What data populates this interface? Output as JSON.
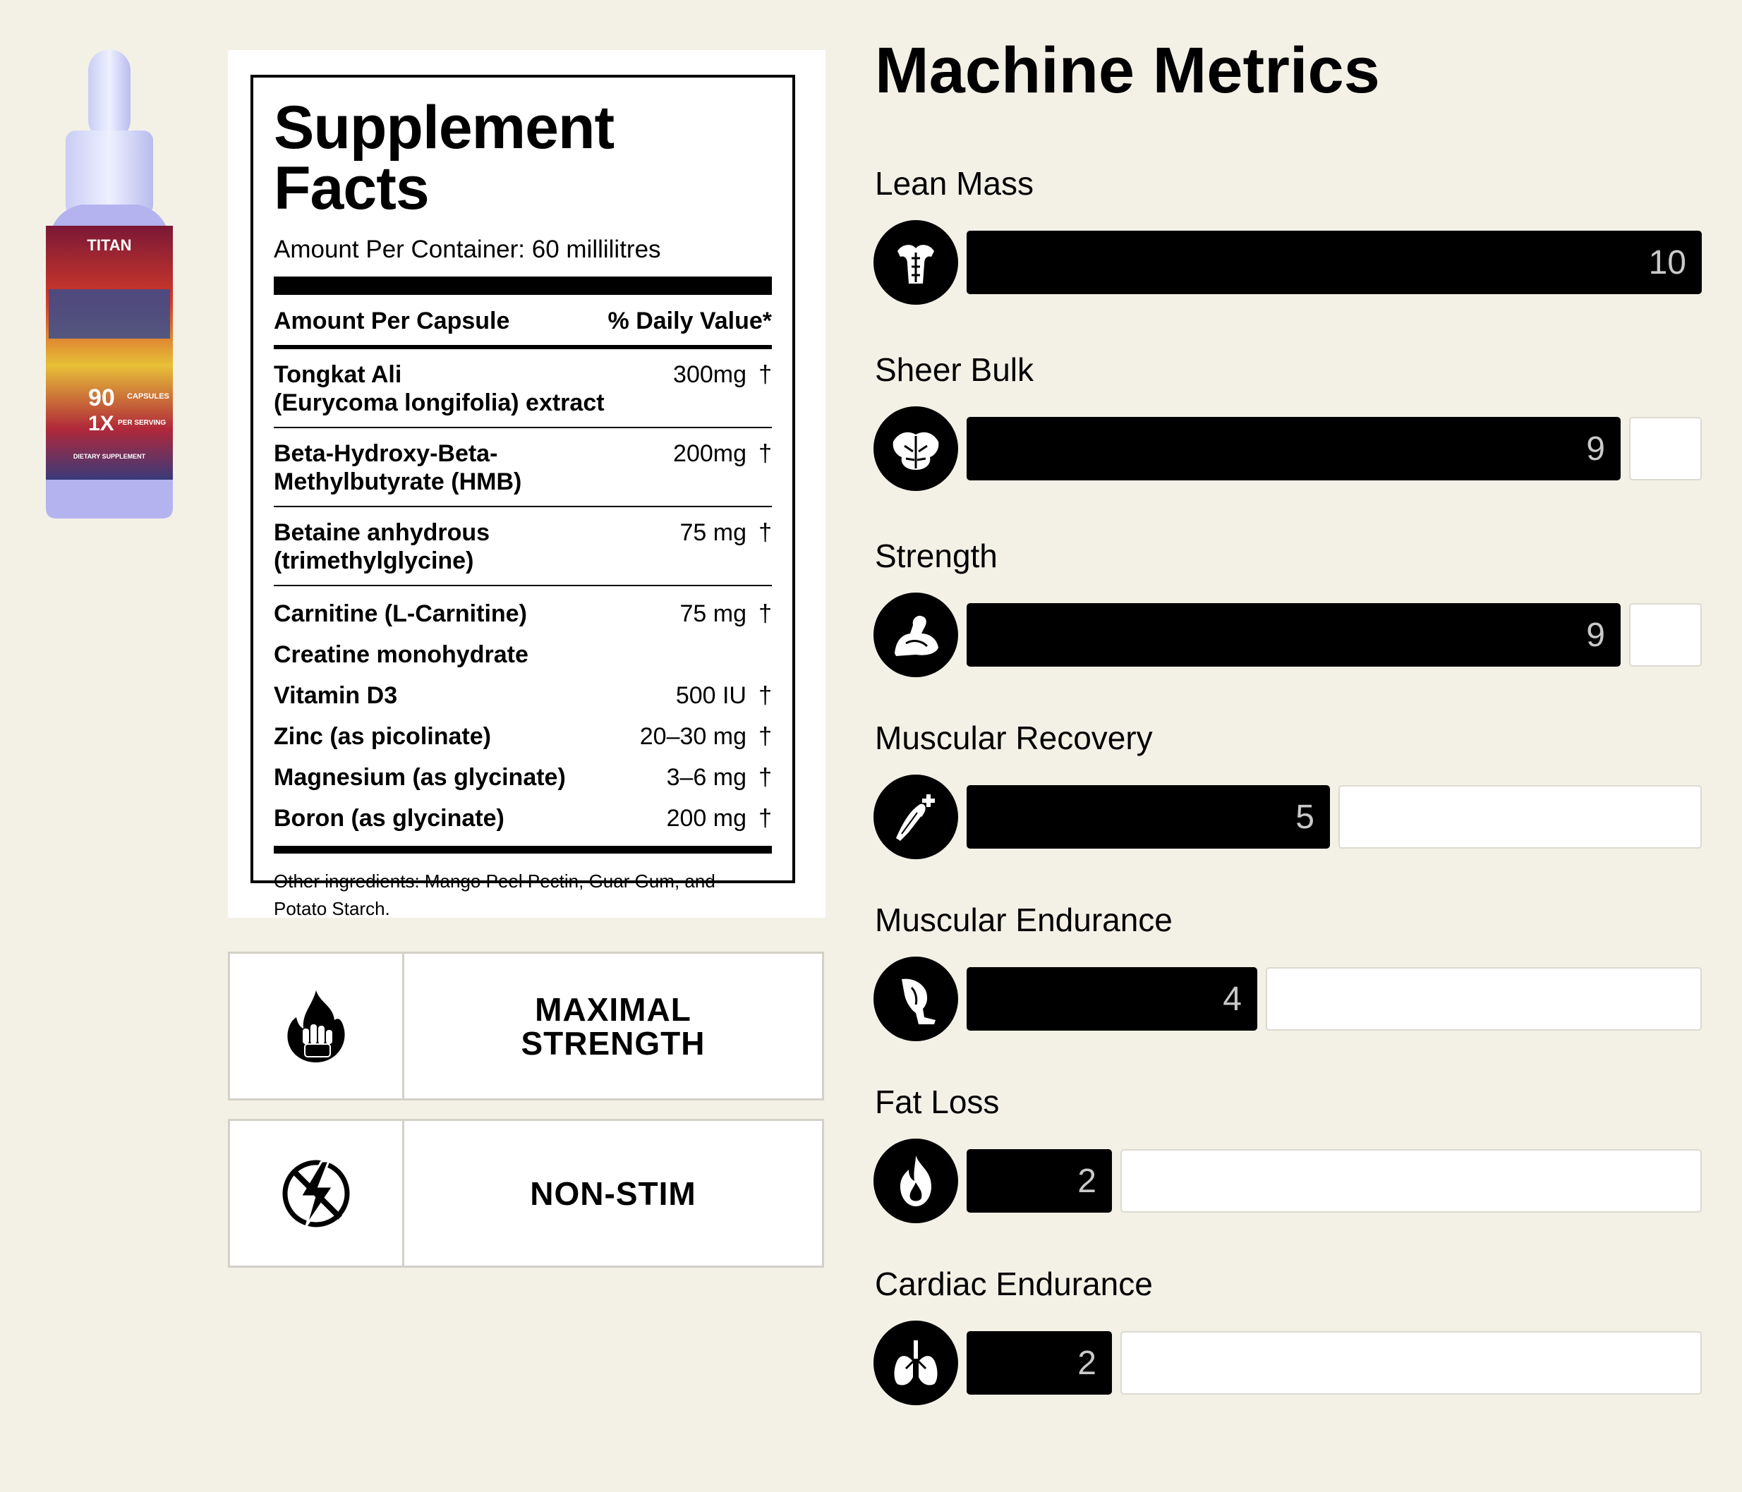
{
  "product": {
    "bottle_label_top": "TITAN",
    "bottle_label_count": "90",
    "bottle_label_count_unit": "CAPSULES",
    "bottle_label_serving": "1X",
    "bottle_label_serving_unit": "PER SERVING",
    "bottle_label_footer": "DIETARY SUPPLEMENT"
  },
  "facts": {
    "title": "Supplement Facts",
    "amount_per_container": "Amount Per Container: 60 millilitres",
    "col_left": "Amount Per Capsule",
    "col_right": "% Daily Value*",
    "ingredients": [
      {
        "name": "Tongkat Ali",
        "name2": "(Eurycoma longifolia) extract",
        "amount": "300mg",
        "dv": "†"
      },
      {
        "name": "Beta-Hydroxy-Beta-",
        "name2": "Methylbutyrate (HMB)",
        "amount": "200mg",
        "dv": "†"
      },
      {
        "name": "Betaine anhydrous",
        "name2": "(trimethylglycine)",
        "amount": "75 mg",
        "dv": "†"
      },
      {
        "name": "Carnitine (L-Carnitine)",
        "amount": "75 mg",
        "dv": "†"
      },
      {
        "name": "Creatine monohydrate",
        "amount": "",
        "dv": ""
      },
      {
        "name": "Vitamin D3",
        "amount": "500 IU",
        "dv": "†"
      },
      {
        "name": "Zinc (as picolinate)",
        "amount": "20–30 mg",
        "dv": "†"
      },
      {
        "name": "Magnesium (as glycinate)",
        "amount": "3–6 mg",
        "dv": "†"
      },
      {
        "name": "Boron (as glycinate)",
        "amount": "200 mg",
        "dv": "†"
      }
    ],
    "other_ingredients": "Other ingredients: Mango Peel Pectin, Guar Gum, and Potato Starch."
  },
  "features": [
    {
      "line1": "MAXIMAL",
      "line2": "STRENGTH",
      "icon": "flame-fist-icon"
    },
    {
      "line1": "NON-STIM",
      "line2": "",
      "icon": "no-lightning-icon"
    }
  ],
  "metrics": {
    "title": "Machine Metrics",
    "max_score": 10,
    "items": [
      {
        "label": "Lean Mass",
        "score": 10,
        "icon": "torso-icon"
      },
      {
        "label": "Sheer Bulk",
        "score": 9,
        "icon": "back-muscle-icon"
      },
      {
        "label": "Strength",
        "score": 9,
        "icon": "flexed-arm-icon"
      },
      {
        "label": "Muscular Recovery",
        "score": 5,
        "icon": "muscle-plus-icon"
      },
      {
        "label": "Muscular Endurance",
        "score": 4,
        "icon": "leg-icon"
      },
      {
        "label": "Fat Loss",
        "score": 2,
        "icon": "flame-icon"
      },
      {
        "label": "Cardiac Endurance",
        "score": 2,
        "icon": "lungs-icon"
      }
    ]
  }
}
